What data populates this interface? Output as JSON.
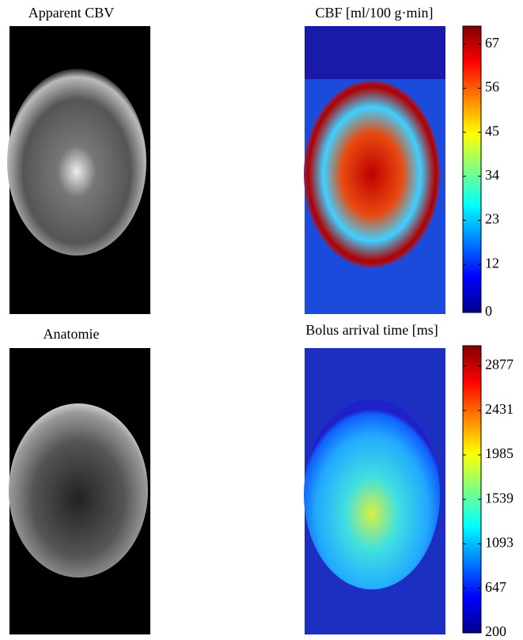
{
  "panels": [
    {
      "title": "Apparent CBV"
    },
    {
      "title": "CBF [ml/100 g·min]",
      "colorbar": {
        "lim": [
          0,
          71.5
        ],
        "ticks": [
          0,
          12,
          23,
          34,
          45,
          56,
          67
        ]
      }
    },
    {
      "title": "Anatomie"
    },
    {
      "title": "Bolus arrival time [ms]",
      "colorbar": {
        "lim": [
          200,
          3080
        ],
        "ticks": [
          200,
          647,
          1093,
          1539,
          1985,
          2431,
          2877
        ]
      }
    }
  ]
}
